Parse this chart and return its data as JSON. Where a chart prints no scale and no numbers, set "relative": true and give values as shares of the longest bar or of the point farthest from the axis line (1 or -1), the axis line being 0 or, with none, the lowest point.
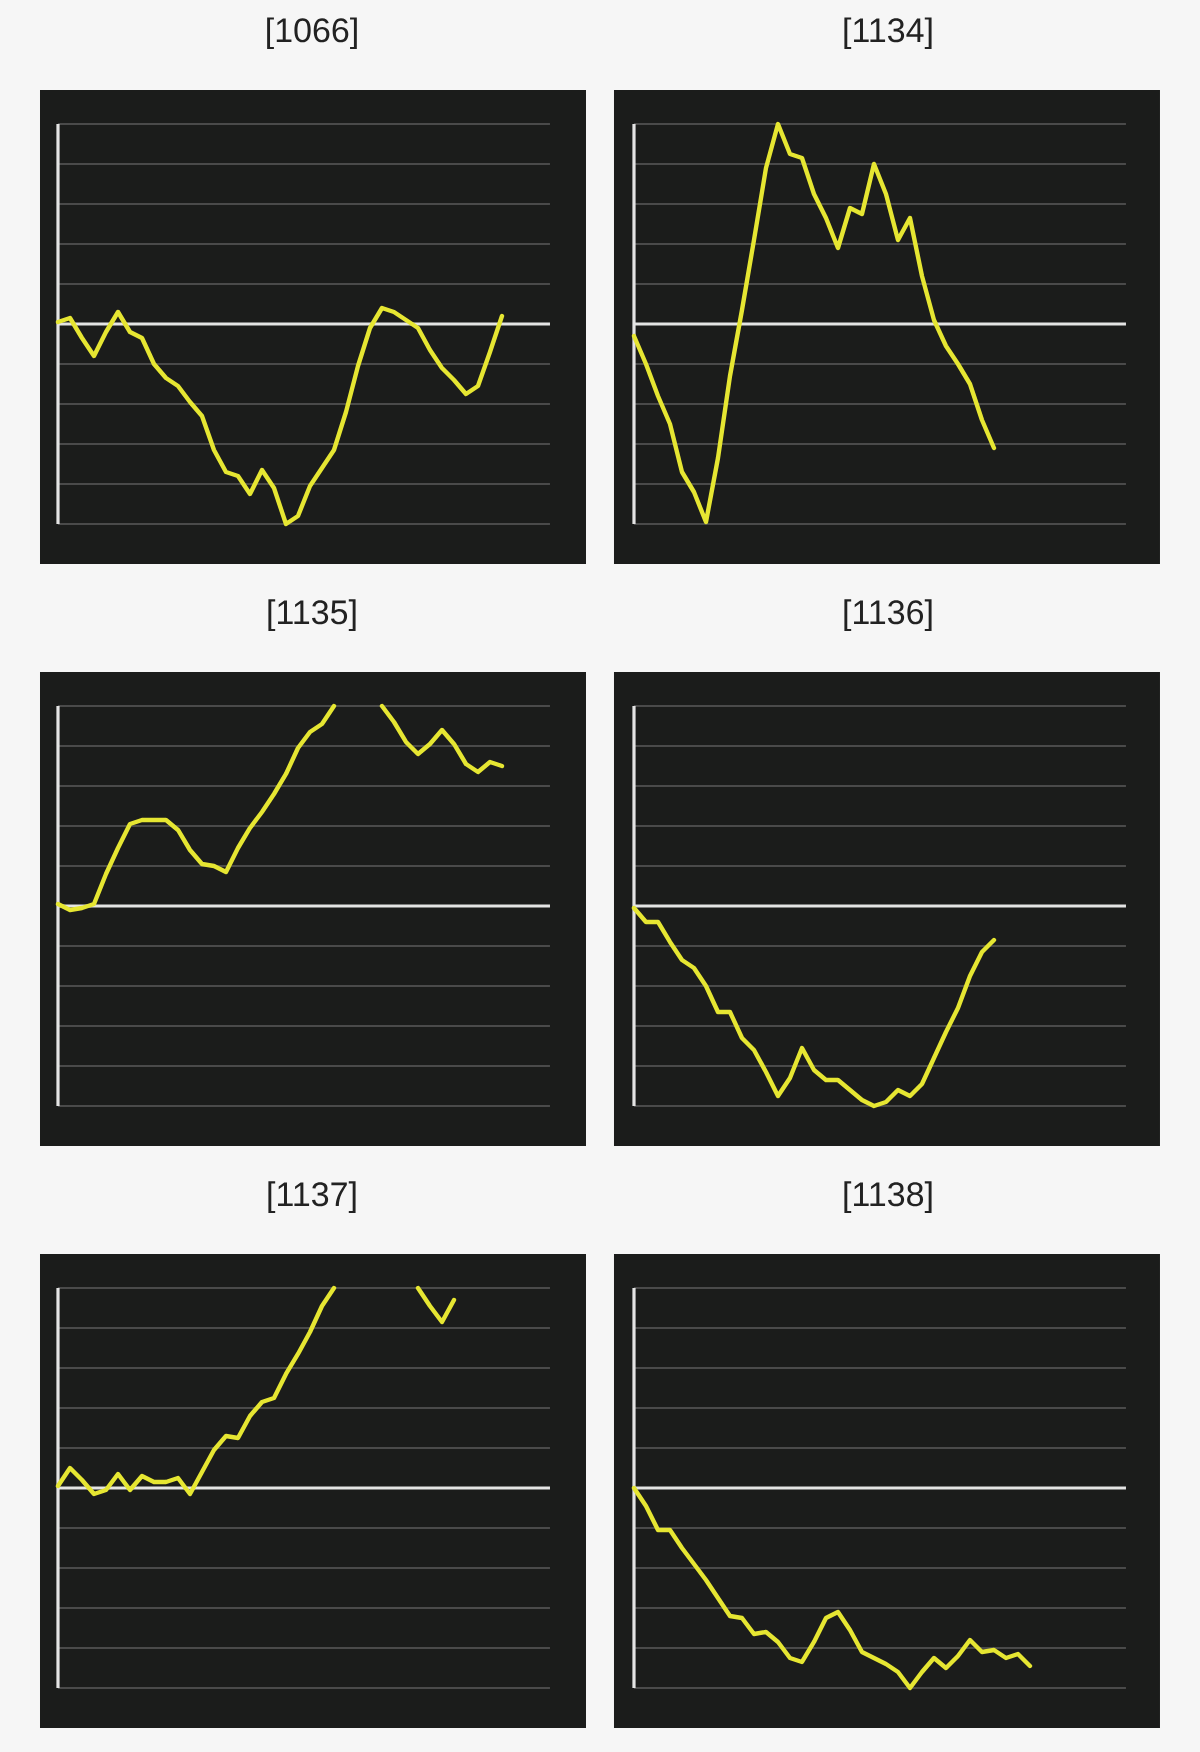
{
  "chart_data": [
    {
      "type": "line",
      "title": "[1066]",
      "relative": true,
      "grid": "y",
      "color": "#e6e632",
      "categories": [
        null,
        null,
        null,
        null,
        null,
        null,
        null,
        null,
        null,
        null,
        null,
        null,
        null,
        null,
        null,
        null,
        null,
        null,
        null,
        null,
        null,
        null,
        null,
        null,
        null,
        null,
        null,
        null,
        null,
        null,
        null,
        null,
        null,
        null,
        null,
        null,
        null,
        null,
        null,
        null,
        null,
        null
      ],
      "values": [
        0.01,
        0.03,
        -0.07,
        -0.16,
        -0.04,
        0.06,
        -0.04,
        -0.07,
        -0.2,
        -0.27,
        -0.31,
        -0.39,
        -0.46,
        -0.63,
        -0.74,
        -0.76,
        -0.85,
        -0.73,
        -0.82,
        -1,
        -0.96,
        -0.81,
        -0.72,
        -0.63,
        -0.44,
        -0.21,
        -0.02,
        0.08,
        0.06,
        0.02,
        -0.02,
        -0.13,
        -0.22,
        -0.28,
        -0.35,
        -0.31,
        -0.14,
        0.04,
        null,
        null,
        null,
        null
      ]
    },
    {
      "type": "line",
      "title": "[1134]",
      "relative": true,
      "grid": "y",
      "color": "#e6e632",
      "categories": [
        null,
        null,
        null,
        null,
        null,
        null,
        null,
        null,
        null,
        null,
        null,
        null,
        null,
        null,
        null,
        null,
        null,
        null,
        null,
        null,
        null,
        null,
        null,
        null,
        null,
        null,
        null,
        null,
        null,
        null,
        null,
        null,
        null,
        null,
        null,
        null,
        null,
        null,
        null,
        null,
        null,
        null
      ],
      "values": [
        -0.06,
        -0.2,
        -0.36,
        -0.5,
        -0.74,
        -0.84,
        -0.99,
        -0.67,
        -0.26,
        0.07,
        0.42,
        0.78,
        1,
        0.85,
        0.83,
        0.65,
        0.53,
        0.38,
        0.58,
        0.55,
        0.8,
        0.65,
        0.42,
        0.53,
        0.24,
        0.02,
        -0.11,
        -0.2,
        -0.3,
        -0.48,
        -0.62,
        null,
        null,
        null,
        null,
        null,
        null,
        null,
        null,
        null,
        null,
        null
      ]
    },
    {
      "type": "line",
      "title": "[1135]",
      "relative": true,
      "grid": "y",
      "color": "#e6e632",
      "categories": [
        null,
        null,
        null,
        null,
        null,
        null,
        null,
        null,
        null,
        null,
        null,
        null,
        null,
        null,
        null,
        null,
        null,
        null,
        null,
        null,
        null,
        null,
        null,
        null,
        null,
        null,
        null,
        null,
        null,
        null,
        null,
        null,
        null,
        null,
        null,
        null,
        null,
        null,
        null,
        null,
        null,
        null
      ],
      "values": [
        0.01,
        -0.02,
        -0.01,
        0.01,
        0.16,
        0.29,
        0.41,
        0.43,
        0.43,
        0.43,
        0.38,
        0.28,
        0.21,
        0.2,
        0.17,
        0.29,
        0.39,
        0.47,
        0.56,
        0.66,
        0.79,
        0.87,
        0.91,
        1,
        null,
        null,
        null,
        1,
        0.92,
        0.82,
        0.76,
        0.81,
        0.88,
        0.81,
        0.71,
        0.67,
        0.72,
        0.7,
        null,
        null,
        null,
        null
      ]
    },
    {
      "type": "line",
      "title": "[1136]",
      "relative": true,
      "grid": "y",
      "color": "#e6e632",
      "categories": [
        null,
        null,
        null,
        null,
        null,
        null,
        null,
        null,
        null,
        null,
        null,
        null,
        null,
        null,
        null,
        null,
        null,
        null,
        null,
        null,
        null,
        null,
        null,
        null,
        null,
        null,
        null,
        null,
        null,
        null,
        null,
        null,
        null,
        null,
        null,
        null,
        null,
        null,
        null,
        null,
        null,
        null
      ],
      "values": [
        -0.01,
        -0.08,
        -0.08,
        -0.18,
        -0.27,
        -0.31,
        -0.4,
        -0.53,
        -0.53,
        -0.66,
        -0.72,
        -0.83,
        -0.95,
        -0.86,
        -0.71,
        -0.82,
        -0.87,
        -0.87,
        -0.92,
        -0.97,
        -1,
        -0.98,
        -0.92,
        -0.95,
        -0.89,
        -0.76,
        -0.63,
        -0.51,
        -0.35,
        -0.23,
        -0.17,
        null,
        null,
        null,
        null,
        null,
        null,
        null,
        null,
        null,
        null,
        null
      ]
    },
    {
      "type": "line",
      "title": "[1137]",
      "relative": true,
      "grid": "y",
      "color": "#e6e632",
      "categories": [
        null,
        null,
        null,
        null,
        null,
        null,
        null,
        null,
        null,
        null,
        null,
        null,
        null,
        null,
        null,
        null,
        null,
        null,
        null,
        null,
        null,
        null,
        null,
        null,
        null,
        null,
        null,
        null,
        null,
        null,
        null,
        null,
        null,
        null,
        null,
        null,
        null,
        null,
        null,
        null,
        null,
        null
      ],
      "values": [
        0.01,
        0.1,
        0.04,
        -0.03,
        -0.01,
        0.07,
        -0.01,
        0.06,
        0.03,
        0.03,
        0.05,
        -0.03,
        0.08,
        0.19,
        0.26,
        0.25,
        0.36,
        0.43,
        0.45,
        0.57,
        0.67,
        0.78,
        0.91,
        1,
        null,
        null,
        null,
        null,
        null,
        null,
        1,
        0.91,
        0.83,
        0.94,
        null,
        null,
        null,
        null,
        null,
        null,
        null,
        null
      ]
    },
    {
      "type": "line",
      "title": "[1138]",
      "relative": true,
      "grid": "y",
      "color": "#e6e632",
      "categories": [
        null,
        null,
        null,
        null,
        null,
        null,
        null,
        null,
        null,
        null,
        null,
        null,
        null,
        null,
        null,
        null,
        null,
        null,
        null,
        null,
        null,
        null,
        null,
        null,
        null,
        null,
        null,
        null,
        null,
        null,
        null,
        null,
        null,
        null,
        null,
        null,
        null,
        null,
        null,
        null,
        null,
        null
      ],
      "values": [
        0,
        -0.09,
        -0.21,
        -0.21,
        -0.3,
        -0.38,
        -0.46,
        -0.55,
        -0.64,
        -0.65,
        -0.73,
        -0.72,
        -0.77,
        -0.85,
        -0.87,
        -0.77,
        -0.65,
        -0.62,
        -0.71,
        -0.82,
        -0.85,
        -0.88,
        -0.92,
        -1,
        -0.92,
        -0.85,
        -0.9,
        -0.84,
        -0.76,
        -0.82,
        -0.81,
        -0.85,
        -0.83,
        -0.89,
        null,
        null,
        null,
        null,
        null,
        null,
        null,
        null
      ]
    }
  ]
}
